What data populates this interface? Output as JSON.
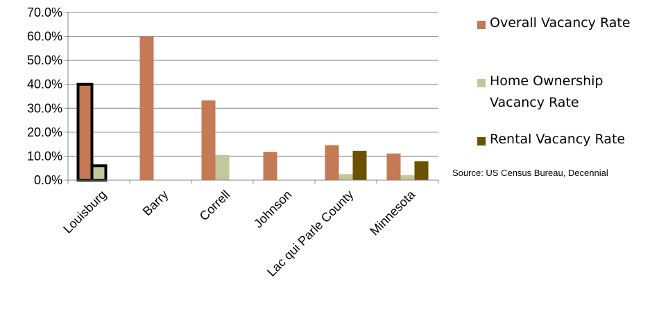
{
  "chart_data": {
    "type": "bar",
    "categories": [
      "Louisburg",
      "Barry",
      "Correll",
      "Johnson",
      "Lac qui Parle County",
      "Minnesota"
    ],
    "series": [
      {
        "name": "Overall Vacancy Rate",
        "color": "#c47a55",
        "values": [
          0.4,
          0.6,
          0.333,
          0.118,
          0.146,
          0.111
        ]
      },
      {
        "name": "Home Ownership Vacancy Rate",
        "color": "#c4c799",
        "values": [
          0.06,
          0.0,
          0.105,
          0.0,
          0.025,
          0.021
        ]
      },
      {
        "name": "Rental Vacancy Rate",
        "color": "#6b5000",
        "values": [
          0.0,
          0.0,
          0.0,
          0.0,
          0.122,
          0.079
        ]
      }
    ],
    "highlighted_category": "Louisburg",
    "yticks": [
      "0.0%",
      "10.0%",
      "20.0%",
      "30.0%",
      "40.0%",
      "50.0%",
      "60.0%",
      "70.0%"
    ],
    "ylim": [
      0,
      0.7
    ],
    "grid": true,
    "legend_position": "right",
    "legend": [
      "Overall Vacancy Rate",
      "Home Ownership Vacancy Rate",
      "Rental Vacancy Rate"
    ],
    "legend_lines": [
      [
        "Overall Vacancy Rate"
      ],
      [
        "Home Ownership",
        "Vacancy Rate"
      ],
      [
        "Rental Vacancy Rate"
      ]
    ],
    "source": "Source: US Census Bureau, Decennial"
  }
}
